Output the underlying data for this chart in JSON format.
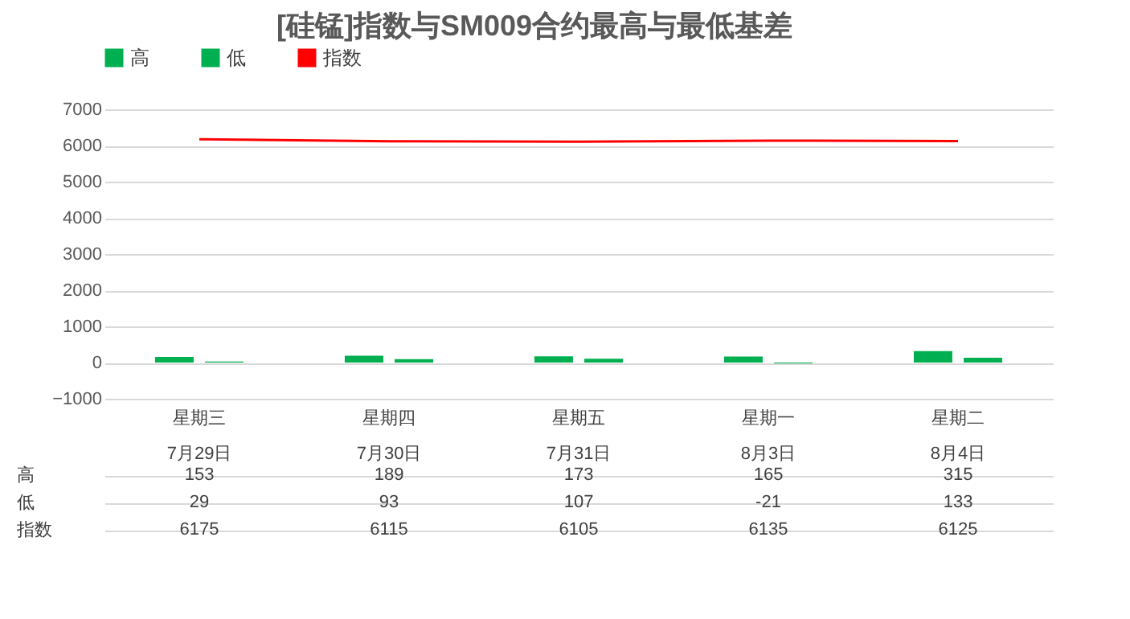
{
  "chart_data": {
    "type": "bar",
    "title": "[硅锰]指数与SM009合约最高与最低基差",
    "categories": [
      "星期三\n7月29日",
      "星期四\n7月30日",
      "星期五\n7月31日",
      "星期一\n8月3日",
      "星期二\n8月4日"
    ],
    "series": [
      {
        "name": "高",
        "color": "#00b050",
        "values": [
          153,
          189,
          173,
          165,
          315
        ]
      },
      {
        "name": "低",
        "color": "#00b050",
        "values": [
          29,
          93,
          107,
          -21,
          133
        ]
      },
      {
        "name": "指数",
        "type": "line",
        "color": "#ff0000",
        "values": [
          6175,
          6115,
          6105,
          6135,
          6125
        ]
      }
    ],
    "ylim": [
      -1000,
      7000
    ],
    "yticks": [
      -1000,
      0,
      1000,
      2000,
      3000,
      4000,
      5000,
      6000,
      7000
    ],
    "grid": "y",
    "legend": "top",
    "data_labels": true
  }
}
